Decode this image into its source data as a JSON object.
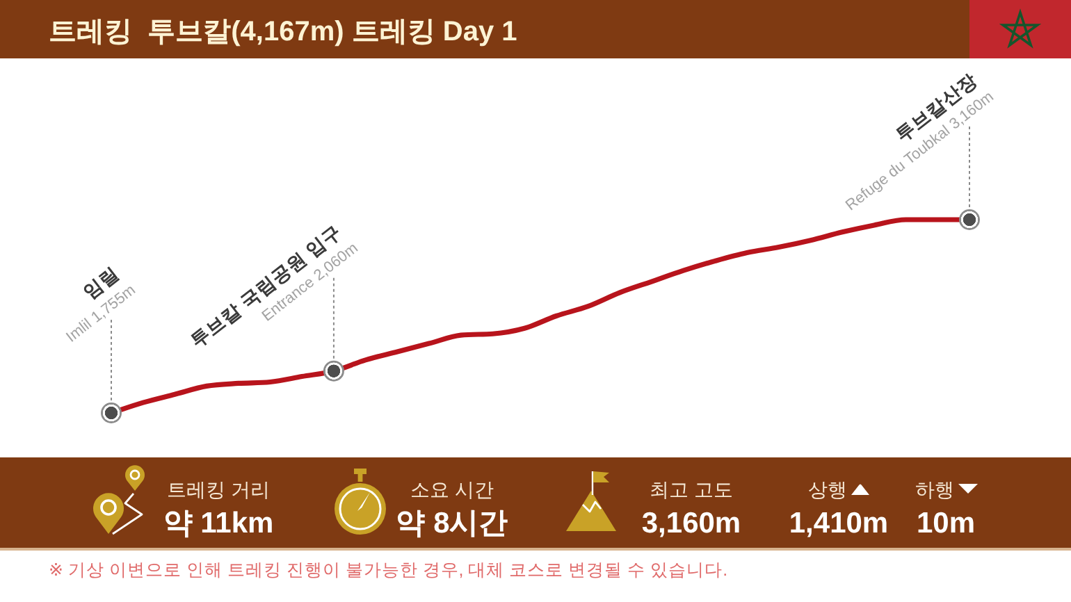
{
  "chart_data": [
    {
      "type": "line",
      "title": "트레킹  투브칼(4,167m) 트레킹 Day 1",
      "categories": [
        null,
        null,
        null,
        null,
        null,
        null,
        null,
        null,
        null,
        null,
        null,
        null,
        null,
        null,
        null,
        null,
        null,
        null,
        null,
        null,
        null,
        null,
        null,
        null,
        null,
        null,
        null,
        null
      ],
      "series": [
        {
          "type": "line",
          "color": "#b8141c",
          "values": [
            1755,
            1830,
            1890,
            1950,
            1970,
            1980,
            2020,
            2060,
            2140,
            2200,
            2260,
            2320,
            2330,
            2370,
            2460,
            2530,
            2630,
            2710,
            2790,
            2860,
            2920,
            2960,
            3010,
            3070,
            3120,
            3160,
            3160,
            3160
          ],
          "value_labels": [
            "1,755m",
            null,
            null,
            null,
            null,
            null,
            null,
            "2,060m",
            null,
            null,
            null,
            null,
            null,
            null,
            null,
            null,
            null,
            null,
            null,
            null,
            null,
            null,
            null,
            null,
            null,
            null,
            null,
            "3,160m"
          ]
        }
      ],
      "annotations": [
        "임릴",
        "투브칼 국립공원 입구",
        "투브칼산장",
        "Imlil",
        "Entrance",
        "Refuge du Toubkal",
        "※ 기상 이변으로 인해 트레킹 진행이 불가능한 경우, 대체 코스로 변경될 수 있습니다."
      ]
    },
    {
      "type": "other",
      "annotations": [
        "트레킹 거리",
        "약 11km",
        "소요 시간",
        "약 8시간",
        "최고 고도",
        "3,160m",
        "상행",
        "1,410m",
        "하행",
        "10m"
      ]
    }
  ]
}
